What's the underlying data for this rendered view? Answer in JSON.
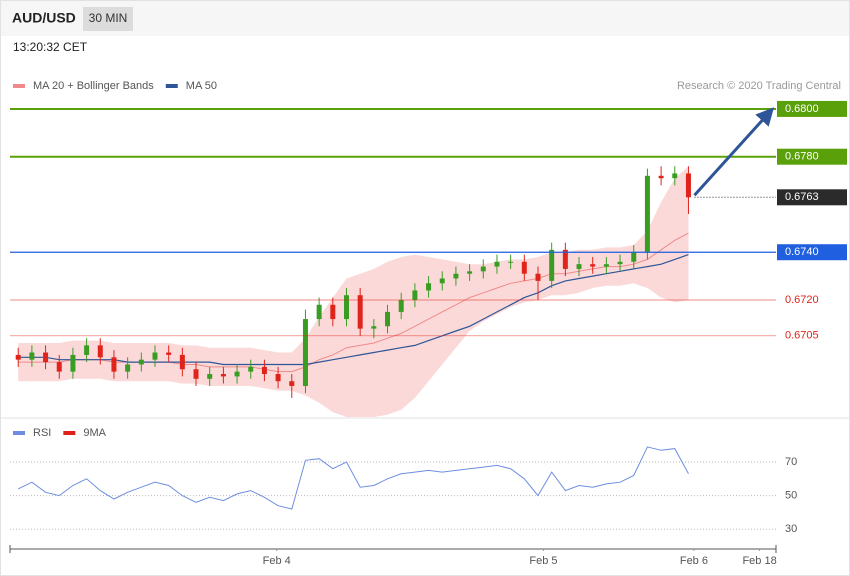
{
  "header": {
    "symbol": "AUD/USD",
    "timeframe": "30 MIN",
    "time": "13:20:32 CET"
  },
  "chart_data": [
    {
      "type": "candlestick",
      "credit": "Research © 2020 Trading Central",
      "up_color": "#3a9d23",
      "down_color": "#e0241b",
      "band_color": "#fbd9d9",
      "ylim": [
        0.6671,
        0.6805
      ],
      "levels": [
        {
          "value": 0.68,
          "label": "0.6800",
          "color": "#5aa00a",
          "line": "thick",
          "label_style": "filled"
        },
        {
          "value": 0.678,
          "label": "0.6780",
          "color": "#5aa00a",
          "line": "thick",
          "label_style": "filled"
        },
        {
          "value": 0.6763,
          "label": "0.6763",
          "color": "#2b2b2b",
          "line": "dotted",
          "label_style": "filled"
        },
        {
          "value": 0.674,
          "label": "0.6740",
          "color": "#1f5fe0",
          "line": "thin",
          "label_style": "filled"
        },
        {
          "value": 0.672,
          "label": "0.6720",
          "color": "#e0241b",
          "line": "thin",
          "label_style": "text"
        },
        {
          "value": 0.6705,
          "label": "0.6705",
          "color": "#e0241b",
          "line": "thin",
          "label_style": "text"
        }
      ],
      "candles": [
        [
          0.6697,
          0.67,
          0.6692,
          0.6695
        ],
        [
          0.6695,
          0.6701,
          0.6692,
          0.6698
        ],
        [
          0.6698,
          0.6701,
          0.6691,
          0.6694
        ],
        [
          0.6694,
          0.6697,
          0.6687,
          0.669
        ],
        [
          0.669,
          0.67,
          0.6687,
          0.6697
        ],
        [
          0.6697,
          0.6704,
          0.6694,
          0.6701
        ],
        [
          0.6701,
          0.6704,
          0.6693,
          0.6696
        ],
        [
          0.6696,
          0.6699,
          0.6687,
          0.669
        ],
        [
          0.669,
          0.6696,
          0.6687,
          0.6693
        ],
        [
          0.6693,
          0.6698,
          0.669,
          0.6695
        ],
        [
          0.6695,
          0.6701,
          0.6692,
          0.6698
        ],
        [
          0.6698,
          0.6701,
          0.6694,
          0.6697
        ],
        [
          0.6697,
          0.67,
          0.6688,
          0.6691
        ],
        [
          0.6691,
          0.6694,
          0.6684,
          0.6687
        ],
        [
          0.6687,
          0.6692,
          0.6684,
          0.6689
        ],
        [
          0.6689,
          0.6692,
          0.6685,
          0.6688
        ],
        [
          0.6688,
          0.6693,
          0.6685,
          0.669
        ],
        [
          0.669,
          0.6695,
          0.6687,
          0.6692
        ],
        [
          0.6692,
          0.6695,
          0.6686,
          0.6689
        ],
        [
          0.6689,
          0.6692,
          0.6683,
          0.6686
        ],
        [
          0.6686,
          0.6689,
          0.6679,
          0.6684
        ],
        [
          0.6684,
          0.6716,
          0.6681,
          0.6712
        ],
        [
          0.6712,
          0.6721,
          0.6709,
          0.6718
        ],
        [
          0.6718,
          0.6721,
          0.6709,
          0.6712
        ],
        [
          0.6712,
          0.6725,
          0.6709,
          0.6722
        ],
        [
          0.6722,
          0.6725,
          0.6705,
          0.6708
        ],
        [
          0.6708,
          0.6712,
          0.6704,
          0.6709
        ],
        [
          0.6709,
          0.6718,
          0.6706,
          0.6715
        ],
        [
          0.6715,
          0.6723,
          0.6712,
          0.672
        ],
        [
          0.672,
          0.6727,
          0.6717,
          0.6724
        ],
        [
          0.6724,
          0.673,
          0.6721,
          0.6727
        ],
        [
          0.6727,
          0.6732,
          0.6724,
          0.6729
        ],
        [
          0.6729,
          0.6734,
          0.6726,
          0.6731
        ],
        [
          0.6731,
          0.6735,
          0.6728,
          0.6732
        ],
        [
          0.6732,
          0.6737,
          0.6729,
          0.6734
        ],
        [
          0.6734,
          0.6739,
          0.6731,
          0.6736
        ],
        [
          0.6736,
          0.6739,
          0.6733,
          0.6736
        ],
        [
          0.6736,
          0.6739,
          0.6728,
          0.6731
        ],
        [
          0.6731,
          0.6734,
          0.672,
          0.6728
        ],
        [
          0.6728,
          0.6744,
          0.6725,
          0.6741
        ],
        [
          0.6741,
          0.6744,
          0.673,
          0.6733
        ],
        [
          0.6733,
          0.6738,
          0.673,
          0.6735
        ],
        [
          0.6735,
          0.6738,
          0.6731,
          0.6734
        ],
        [
          0.6734,
          0.6738,
          0.6731,
          0.6735
        ],
        [
          0.6735,
          0.6739,
          0.6732,
          0.6736
        ],
        [
          0.6736,
          0.6743,
          0.6733,
          0.674
        ],
        [
          0.674,
          0.6775,
          0.6737,
          0.6772
        ],
        [
          0.6772,
          0.6776,
          0.6768,
          0.6771
        ],
        [
          0.6771,
          0.6776,
          0.6768,
          0.6773
        ],
        [
          0.6773,
          0.6776,
          0.6756,
          0.6763
        ]
      ],
      "series": [
        {
          "name": "MA 20 + Bollinger Bands",
          "color": "#f08a8a",
          "values": [
            0.6694,
            0.6694,
            0.6694,
            0.6694,
            0.6695,
            0.6695,
            0.6695,
            0.6694,
            0.6694,
            0.6694,
            0.6694,
            0.6694,
            0.6693,
            0.6693,
            0.6692,
            0.6692,
            0.6692,
            0.6692,
            0.6691,
            0.669,
            0.669,
            0.6692,
            0.6695,
            0.6697,
            0.67,
            0.6701,
            0.6702,
            0.6704,
            0.6706,
            0.6709,
            0.6712,
            0.6715,
            0.6718,
            0.6721,
            0.6723,
            0.6725,
            0.6727,
            0.6728,
            0.6729,
            0.6731,
            0.6731,
            0.6732,
            0.6733,
            0.6734,
            0.6734,
            0.6735,
            0.6737,
            0.6741,
            0.6745,
            0.6748
          ],
          "upper": [
            0.6702,
            0.6702,
            0.6702,
            0.6702,
            0.6703,
            0.6703,
            0.6703,
            0.6702,
            0.6702,
            0.6702,
            0.6702,
            0.6702,
            0.6701,
            0.6701,
            0.67,
            0.67,
            0.67,
            0.67,
            0.6699,
            0.6698,
            0.6698,
            0.6704,
            0.6713,
            0.6721,
            0.6729,
            0.6731,
            0.6733,
            0.6736,
            0.6738,
            0.6739,
            0.6738,
            0.6737,
            0.6736,
            0.6735,
            0.6735,
            0.6736,
            0.6737,
            0.6737,
            0.6738,
            0.674,
            0.674,
            0.6741,
            0.6741,
            0.6742,
            0.6742,
            0.6743,
            0.6749,
            0.6761,
            0.6771,
            0.6776
          ],
          "lower": [
            0.6686,
            0.6686,
            0.6686,
            0.6686,
            0.6687,
            0.6687,
            0.6687,
            0.6686,
            0.6686,
            0.6686,
            0.6686,
            0.6686,
            0.6685,
            0.6685,
            0.6684,
            0.6684,
            0.6684,
            0.6684,
            0.6683,
            0.6682,
            0.6682,
            0.668,
            0.6677,
            0.6673,
            0.6671,
            0.6671,
            0.6671,
            0.6672,
            0.6674,
            0.6679,
            0.6686,
            0.6693,
            0.67,
            0.6707,
            0.6711,
            0.6714,
            0.6717,
            0.6719,
            0.672,
            0.6722,
            0.6722,
            0.6723,
            0.6725,
            0.6726,
            0.6726,
            0.6727,
            0.6725,
            0.6721,
            0.6719,
            0.672
          ]
        },
        {
          "name": "MA 50",
          "color": "#2e5597",
          "values": [
            0.6696,
            0.6696,
            0.6696,
            0.6695,
            0.6695,
            0.6695,
            0.6695,
            0.6695,
            0.6694,
            0.6694,
            0.6694,
            0.6694,
            0.6694,
            0.6694,
            0.6694,
            0.6693,
            0.6693,
            0.6693,
            0.6693,
            0.6693,
            0.6693,
            0.6693,
            0.6694,
            0.6695,
            0.6696,
            0.6697,
            0.6698,
            0.6699,
            0.67,
            0.6701,
            0.6703,
            0.6705,
            0.6707,
            0.6709,
            0.6712,
            0.6715,
            0.6718,
            0.6721,
            0.6723,
            0.6726,
            0.6728,
            0.6729,
            0.673,
            0.6731,
            0.6732,
            0.6733,
            0.6734,
            0.6735,
            0.6737,
            0.6739
          ]
        }
      ]
    },
    {
      "type": "line",
      "ylim": [
        20,
        84
      ],
      "yticks": [
        30,
        50,
        70
      ],
      "grid": true,
      "xlim": [
        -0.6,
        55.4
      ],
      "xticks": [
        {
          "value": 18.9,
          "label": "Feb 4"
        },
        {
          "value": 38.4,
          "label": "Feb 5"
        },
        {
          "value": 49.4,
          "label": "Feb 6"
        },
        {
          "value": 54.2,
          "label": "Feb 18"
        }
      ],
      "series": [
        {
          "name": "RSI",
          "color": "#6d8ee0",
          "values": [
            54,
            58,
            52,
            50,
            56,
            60,
            53,
            48,
            52,
            55,
            58,
            56,
            50,
            46,
            49,
            47,
            51,
            53,
            49,
            44,
            42,
            71,
            72,
            66,
            70,
            55,
            56,
            60,
            63,
            64,
            65,
            64,
            65,
            66,
            67,
            68,
            66,
            60,
            50,
            64,
            53,
            56,
            55,
            57,
            58,
            62,
            79,
            77,
            78,
            63
          ]
        },
        {
          "name": "9MA",
          "color": "#e0201b"
        }
      ]
    }
  ]
}
